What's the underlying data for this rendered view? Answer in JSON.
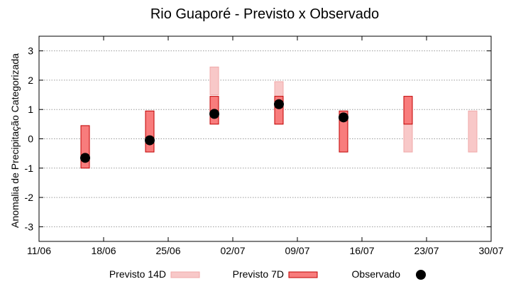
{
  "chart_data": {
    "type": "bar",
    "title": "Rio Guaporé - Previsto x Observado",
    "xlabel": "",
    "ylabel": "Anomalia de Precipitação Categorizada",
    "xlim": [
      "2023-06-11",
      "2023-07-30"
    ],
    "ylim": [
      -3.5,
      3.5
    ],
    "x_tick_labels": [
      "11/06",
      "18/06",
      "25/06",
      "02/07",
      "09/07",
      "16/07",
      "23/07",
      "30/07"
    ],
    "y_ticks": [
      -3,
      -2,
      -1,
      0,
      1,
      2,
      3
    ],
    "grid": true,
    "legend_position": "bottom",
    "series": [
      {
        "name": "Previsto 14D",
        "kind": "range-bar",
        "color": "#f8c8c8",
        "border": "#f0a8a8",
        "points": [
          {
            "x": "2023-06-30",
            "low": 1.5,
            "high": 2.45
          },
          {
            "x": "2023-07-07",
            "low": 0.5,
            "high": 1.95
          },
          {
            "x": "2023-07-21",
            "low": -0.45,
            "high": 0.95
          },
          {
            "x": "2023-07-28",
            "low": -0.45,
            "high": 0.95
          }
        ]
      },
      {
        "name": "Previsto 7D",
        "kind": "range-bar",
        "color": "#f87c7c",
        "border": "#c00000",
        "points": [
          {
            "x": "2023-06-16",
            "low": -1.0,
            "high": 0.45
          },
          {
            "x": "2023-06-23",
            "low": -0.45,
            "high": 0.95
          },
          {
            "x": "2023-06-30",
            "low": 0.5,
            "high": 1.45
          },
          {
            "x": "2023-07-07",
            "low": 0.5,
            "high": 1.45
          },
          {
            "x": "2023-07-14",
            "low": -0.45,
            "high": 0.95
          },
          {
            "x": "2023-07-21",
            "low": 0.5,
            "high": 1.45
          }
        ]
      },
      {
        "name": "Observado",
        "kind": "point",
        "color": "#000000",
        "points": [
          {
            "x": "2023-06-16",
            "y": -0.65
          },
          {
            "x": "2023-06-23",
            "y": -0.05
          },
          {
            "x": "2023-06-30",
            "y": 0.85
          },
          {
            "x": "2023-07-07",
            "y": 1.18
          },
          {
            "x": "2023-07-14",
            "y": 0.73
          }
        ]
      }
    ]
  }
}
